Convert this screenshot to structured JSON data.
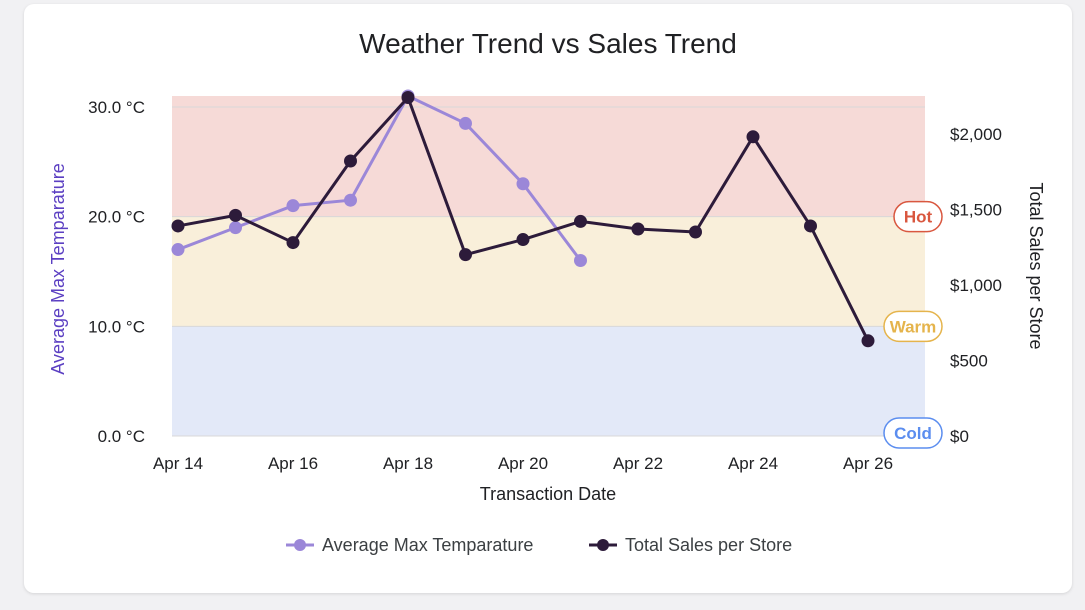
{
  "chart_data": {
    "type": "line",
    "title": "Weather Trend vs Sales Trend",
    "xlabel": "Transaction Date",
    "ylabel_left": "Average Max Temparature",
    "ylabel_right": "Total Sales per Store",
    "x": [
      "Apr 14",
      "Apr 15",
      "Apr 16",
      "Apr 17",
      "Apr 18",
      "Apr 19",
      "Apr 20",
      "Apr 21",
      "Apr 22",
      "Apr 23",
      "Apr 24",
      "Apr 25",
      "Apr 26"
    ],
    "x_tick_labels": [
      "Apr 14",
      "Apr 16",
      "Apr 18",
      "Apr 20",
      "Apr 22",
      "Apr 24",
      "Apr 26"
    ],
    "y_left_ticks": [
      "0.0 °C",
      "10.0 °C",
      "20.0 °C",
      "30.0 °C"
    ],
    "y_left_tick_values": [
      0,
      10,
      20,
      30
    ],
    "y_left_lim": [
      0,
      31
    ],
    "y_right_ticks": [
      "$0",
      "$500",
      "$1,000",
      "$1,500",
      "$2,000"
    ],
    "y_right_tick_values": [
      0,
      500,
      1000,
      1500,
      2000
    ],
    "y_right_lim": [
      0,
      2250
    ],
    "series": [
      {
        "name": "Average Max Temparature",
        "axis": "left",
        "color": "#9b87d8",
        "values": [
          17.0,
          19.0,
          21.0,
          21.5,
          31.0,
          28.5,
          23.0,
          16.0,
          null,
          null,
          null,
          null,
          null
        ]
      },
      {
        "name": "Total Sales per Store",
        "axis": "right",
        "color": "#2d1b3a",
        "values": [
          1390,
          1460,
          1280,
          1820,
          2240,
          1200,
          1300,
          1420,
          1370,
          1350,
          1980,
          1390,
          630
        ]
      }
    ],
    "bands": [
      {
        "label": "Cold",
        "from": 0,
        "to": 10,
        "fill": "#e3e9f8",
        "text_color": "#5b8def"
      },
      {
        "label": "Warm",
        "from": 10,
        "to": 20,
        "fill": "#f9efda",
        "text_color": "#e5b44c"
      },
      {
        "label": "Hot",
        "from": 20,
        "to": 31,
        "fill": "#f6dad7",
        "text_color": "#d9573f"
      }
    ],
    "legend": "bottom",
    "grid": true
  }
}
